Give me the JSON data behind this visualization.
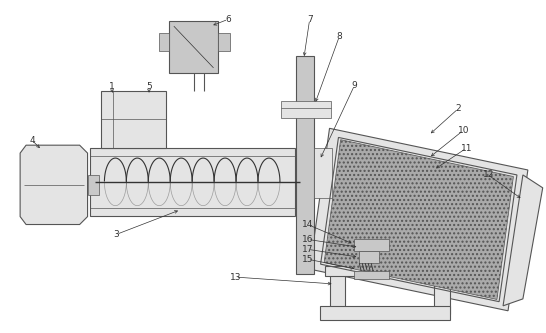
{
  "bg_color": "#ffffff",
  "lc": "#555555",
  "dc": "#333333",
  "gray_fill": "#c8c8c8",
  "light_gray": "#e4e4e4",
  "mid_gray": "#aaaaaa",
  "dark_gray": "#888888",
  "hatch_gray": "#999999",
  "fs": 6.5
}
